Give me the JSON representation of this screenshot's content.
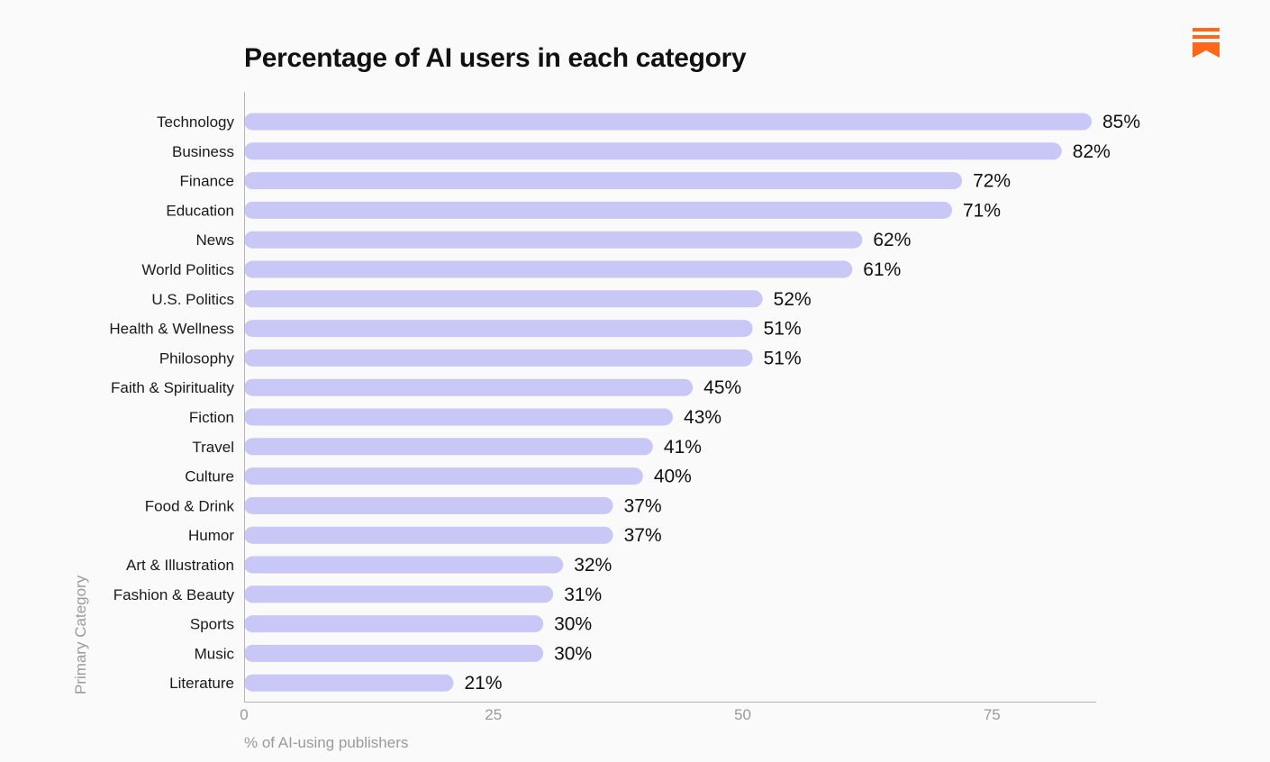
{
  "chart_data": {
    "type": "bar",
    "orientation": "horizontal",
    "title": "Percentage of AI users in each category",
    "xlabel": "% of AI-using publishers",
    "ylabel": "Primary Category",
    "xlim": [
      0,
      85
    ],
    "xticks": [
      0,
      25,
      50,
      75
    ],
    "grid": false,
    "bar_color": "#c9c7f5",
    "value_suffix": "%",
    "categories": [
      "Technology",
      "Business",
      "Finance",
      "Education",
      "News",
      "World Politics",
      "U.S. Politics",
      "Health & Wellness",
      "Philosophy",
      "Faith & Spirituality",
      "Fiction",
      "Travel",
      "Culture",
      "Food & Drink",
      "Humor",
      "Art & Illustration",
      "Fashion & Beauty",
      "Sports",
      "Music",
      "Literature"
    ],
    "values": [
      85,
      82,
      72,
      71,
      62,
      61,
      52,
      51,
      51,
      45,
      43,
      41,
      40,
      37,
      37,
      32,
      31,
      30,
      30,
      21
    ]
  },
  "brand": {
    "logo_icon": "substack-logo-icon",
    "logo_color": "#ff6719"
  }
}
